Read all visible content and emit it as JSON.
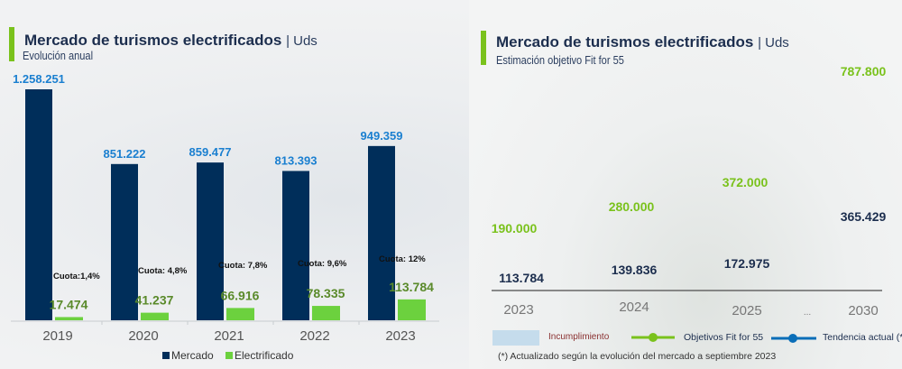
{
  "left": {
    "title": "Mercado de turismos electrificados",
    "unit": "| Uds",
    "subtitle": "Evolución anual"
  },
  "right": {
    "title": "Mercado de turismos electrificados",
    "unit": "| Uds",
    "subtitle": "Estimación objetivo Fit for 55",
    "footnote": "(*) Actualizado según la evolución del mercado a septiembre 2023"
  },
  "chart_data": [
    {
      "type": "bar",
      "categories": [
        "2019",
        "2020",
        "2021",
        "2022",
        "2023"
      ],
      "series": [
        {
          "name": "Mercado",
          "values": [
            1258251,
            851222,
            859477,
            813393,
            949359
          ],
          "labels": [
            "1.258.251",
            "851.222",
            "859.477",
            "813.393",
            "949.359"
          ],
          "color": "#002e5a"
        },
        {
          "name": "Electrificado",
          "values": [
            17474,
            41237,
            66916,
            78335,
            113784
          ],
          "labels": [
            "17.474",
            "41.237",
            "66.916",
            "78.335",
            "113.784"
          ],
          "color": "#6cd13e"
        }
      ],
      "annotations": [
        "Cuota:1,4%",
        "Cuota: 4,8%",
        "Cuota: 7,8%",
        "Cuota: 9,6%",
        "Cuota: 12%"
      ],
      "legend": "bottom",
      "grid": false
    },
    {
      "type": "line",
      "categories": [
        "2023",
        "2024",
        "2025",
        "...",
        "2030"
      ],
      "series": [
        {
          "name": "Objetivos Fit for 55",
          "x": [
            "2023",
            "2024",
            "2025",
            "2030"
          ],
          "values": [
            190000,
            280000,
            372000,
            787800
          ],
          "labels": [
            "190.000",
            "280.000",
            "372.000",
            "787.800"
          ],
          "color": "#7ac21c"
        },
        {
          "name": "Tendencia actual (*)",
          "x": [
            "2023",
            "2024",
            "2025",
            "2030"
          ],
          "values": [
            113784,
            139836,
            172975,
            365429
          ],
          "labels": [
            "113.784",
            "139.836",
            "172.975",
            "365.429"
          ],
          "color": "#0a6eb8"
        }
      ],
      "area": {
        "name": "Incumplimiento",
        "color": "#c5dcec"
      },
      "legend": "bottom",
      "grid": false
    }
  ]
}
